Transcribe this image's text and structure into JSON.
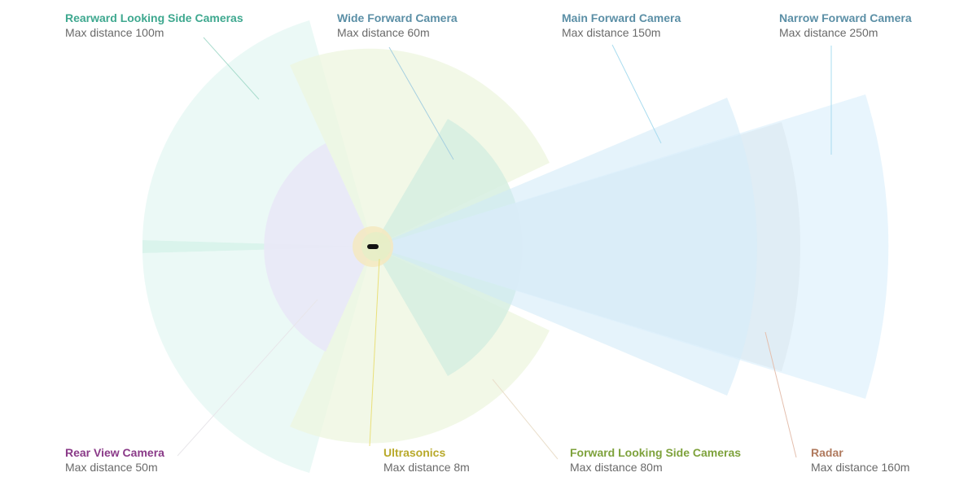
{
  "colors": {
    "rearward_side": "#3ea88f",
    "wide_forward": "#5b8fa6",
    "main_forward": "#5b8fa6",
    "narrow_forward": "#5b8fa6",
    "rear_view": "#8a3a88",
    "ultrasonics": "#b8a92a",
    "forward_side": "#7ea23c",
    "radar": "#b07a5e"
  },
  "sensors": {
    "rearward_side": {
      "title": "Rearward Looking Side Cameras",
      "subtitle": "Max distance 100m",
      "range_m": 100
    },
    "wide_forward": {
      "title": "Wide Forward Camera",
      "subtitle": "Max distance 60m",
      "range_m": 60
    },
    "main_forward": {
      "title": "Main Forward Camera",
      "subtitle": "Max distance 150m",
      "range_m": 150
    },
    "narrow_forward": {
      "title": "Narrow Forward Camera",
      "subtitle": "Max distance 250m",
      "range_m": 250
    },
    "rear_view": {
      "title": "Rear View Camera",
      "subtitle": "Max distance 50m",
      "range_m": 50
    },
    "ultrasonics": {
      "title": "Ultrasonics",
      "subtitle": "Max distance 8m",
      "range_m": 8
    },
    "forward_side": {
      "title": "Forward Looking Side Cameras",
      "subtitle": "Max distance 80m",
      "range_m": 80
    },
    "radar": {
      "title": "Radar",
      "subtitle": "Max distance 160m",
      "range_m": 160
    }
  }
}
